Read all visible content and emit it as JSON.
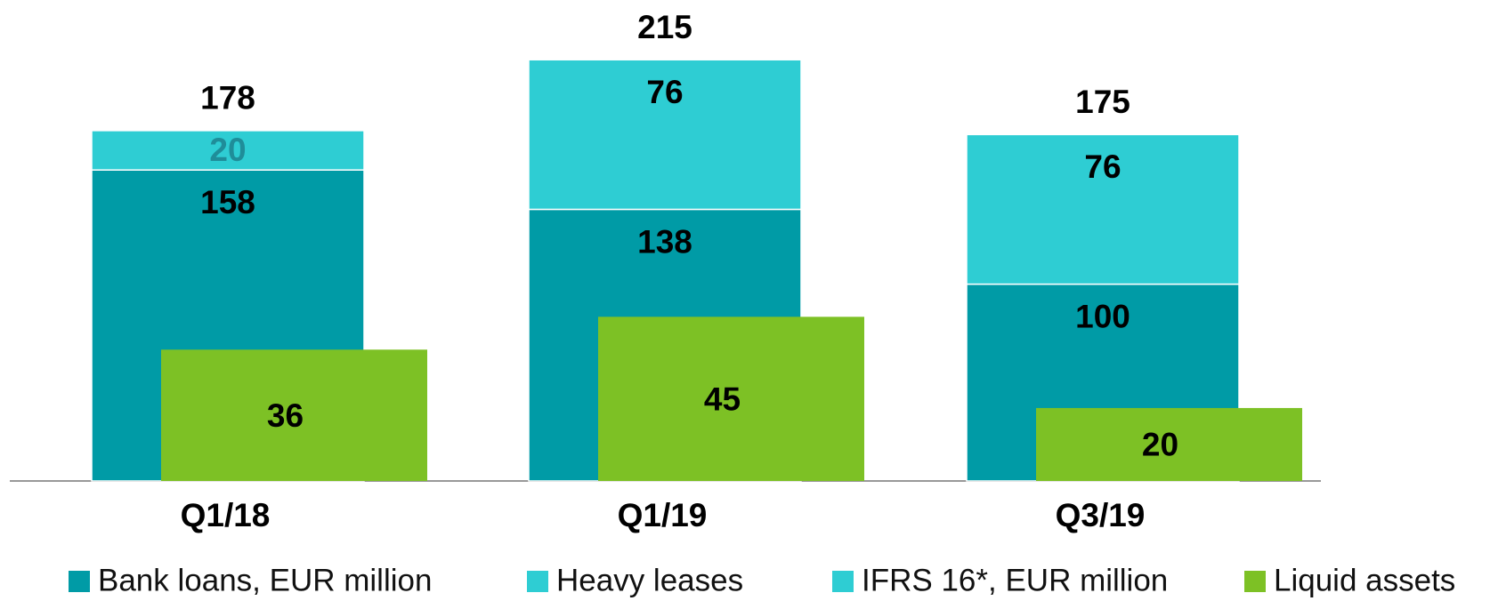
{
  "chart_data": {
    "type": "bar",
    "categories": [
      "Q1/18",
      "Q1/19",
      "Q3/19"
    ],
    "series": [
      {
        "name": "Bank loans, EUR million",
        "color": "#009ba6",
        "label_color": "#000000",
        "values": [
          158,
          138,
          100
        ]
      },
      {
        "name": "Heavy leases",
        "color": "#2ecdd3",
        "label_color": "#1f8d99",
        "values": [
          20,
          null,
          null
        ]
      },
      {
        "name": "IFRS 16*, EUR million",
        "color": "#2ecdd3",
        "label_color": "#000000",
        "values": [
          null,
          76,
          76
        ]
      },
      {
        "name": "Liquid assets",
        "color": "#7dc125",
        "label_color": "#000000",
        "axis": "y2",
        "values": [
          36,
          45,
          20
        ]
      }
    ],
    "totals": [
      178,
      215,
      175
    ],
    "ylim": [
      0,
      215
    ],
    "y2lim": [
      0,
      116
    ]
  }
}
